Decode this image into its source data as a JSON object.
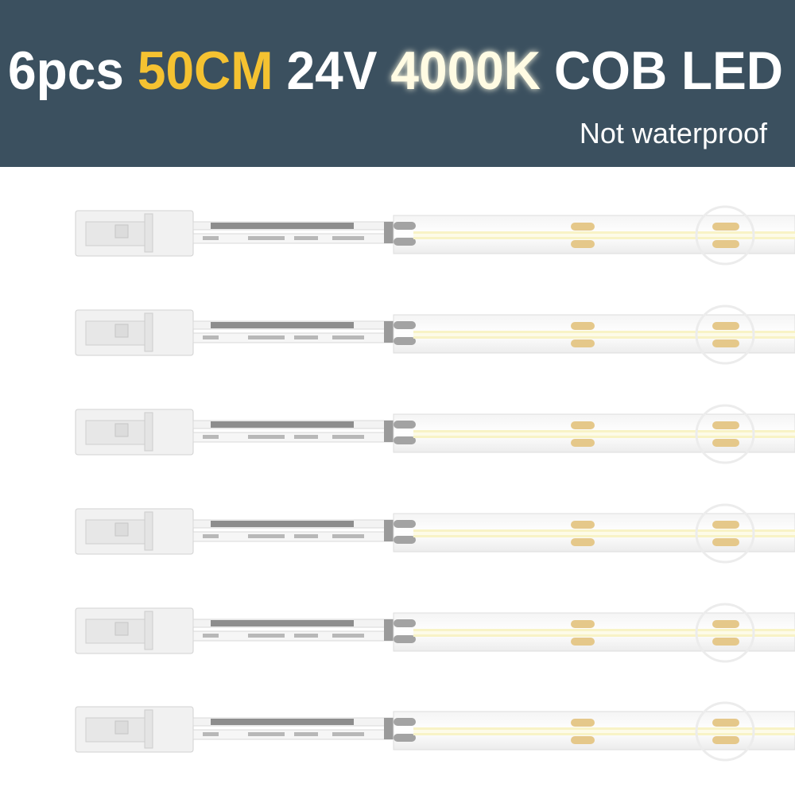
{
  "header": {
    "title_parts": [
      "6pcs",
      "50CM",
      "24V",
      "4000K",
      "COB LED"
    ],
    "subtitle": "Not waterproof"
  }
}
